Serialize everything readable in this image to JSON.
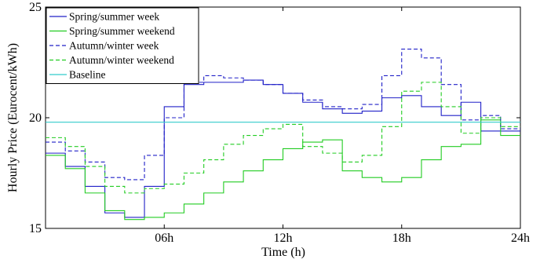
{
  "chart_data": {
    "type": "line",
    "step": true,
    "xlabel": "Time (h)",
    "ylabel": "Hourly Price (Eurocent/kWh)",
    "xlim": [
      0,
      24
    ],
    "ylim": [
      15,
      25
    ],
    "xticks": [
      {
        "value": 6,
        "label": "06h"
      },
      {
        "value": 12,
        "label": "12h"
      },
      {
        "value": 18,
        "label": "18h"
      },
      {
        "value": 24,
        "label": "24h"
      }
    ],
    "yticks": [
      {
        "value": 15,
        "label": "15"
      },
      {
        "value": 20,
        "label": "20"
      },
      {
        "value": 25,
        "label": "25"
      }
    ],
    "grid": false,
    "legend_position": "top-left",
    "series": [
      {
        "name": "Spring/summer week",
        "color": "#2020c8",
        "dash": "solid",
        "values": [
          18.4,
          17.8,
          16.9,
          15.7,
          15.5,
          16.9,
          20.5,
          21.5,
          21.6,
          21.6,
          21.7,
          21.5,
          21.1,
          20.7,
          20.4,
          20.2,
          20.3,
          20.9,
          21.0,
          20.5,
          20.1,
          20.7,
          19.4,
          19.4
        ]
      },
      {
        "name": "Spring/summer weekend",
        "color": "#22cc22",
        "dash": "solid",
        "values": [
          18.3,
          17.7,
          16.6,
          15.8,
          15.4,
          15.5,
          15.7,
          16.1,
          16.6,
          17.1,
          17.6,
          18.1,
          18.6,
          18.9,
          19.0,
          17.6,
          17.3,
          17.1,
          17.3,
          18.1,
          18.7,
          18.8,
          19.9,
          19.2
        ]
      },
      {
        "name": "Autumn/winter week",
        "color": "#2020c8",
        "dash": "dashed",
        "values": [
          18.9,
          18.5,
          18.0,
          17.3,
          17.2,
          18.3,
          20.0,
          21.6,
          21.9,
          21.8,
          21.7,
          21.5,
          21.1,
          20.8,
          20.5,
          20.4,
          20.6,
          21.9,
          23.1,
          22.7,
          21.5,
          19.9,
          20.1,
          19.5
        ]
      },
      {
        "name": "Autumn/winter weekend",
        "color": "#22cc22",
        "dash": "dashed",
        "values": [
          19.1,
          18.7,
          17.8,
          16.9,
          16.6,
          16.8,
          17.0,
          17.5,
          18.1,
          18.8,
          19.2,
          19.5,
          19.7,
          18.7,
          18.4,
          18.0,
          18.3,
          19.6,
          21.2,
          21.6,
          20.5,
          19.3,
          20.0,
          19.6
        ]
      },
      {
        "name": "Baseline",
        "color": "#33cccc",
        "dash": "solid",
        "values": [
          19.8,
          19.8,
          19.8,
          19.8,
          19.8,
          19.8,
          19.8,
          19.8,
          19.8,
          19.8,
          19.8,
          19.8,
          19.8,
          19.8,
          19.8,
          19.8,
          19.8,
          19.8,
          19.8,
          19.8,
          19.8,
          19.8,
          19.8,
          19.8
        ]
      }
    ]
  }
}
